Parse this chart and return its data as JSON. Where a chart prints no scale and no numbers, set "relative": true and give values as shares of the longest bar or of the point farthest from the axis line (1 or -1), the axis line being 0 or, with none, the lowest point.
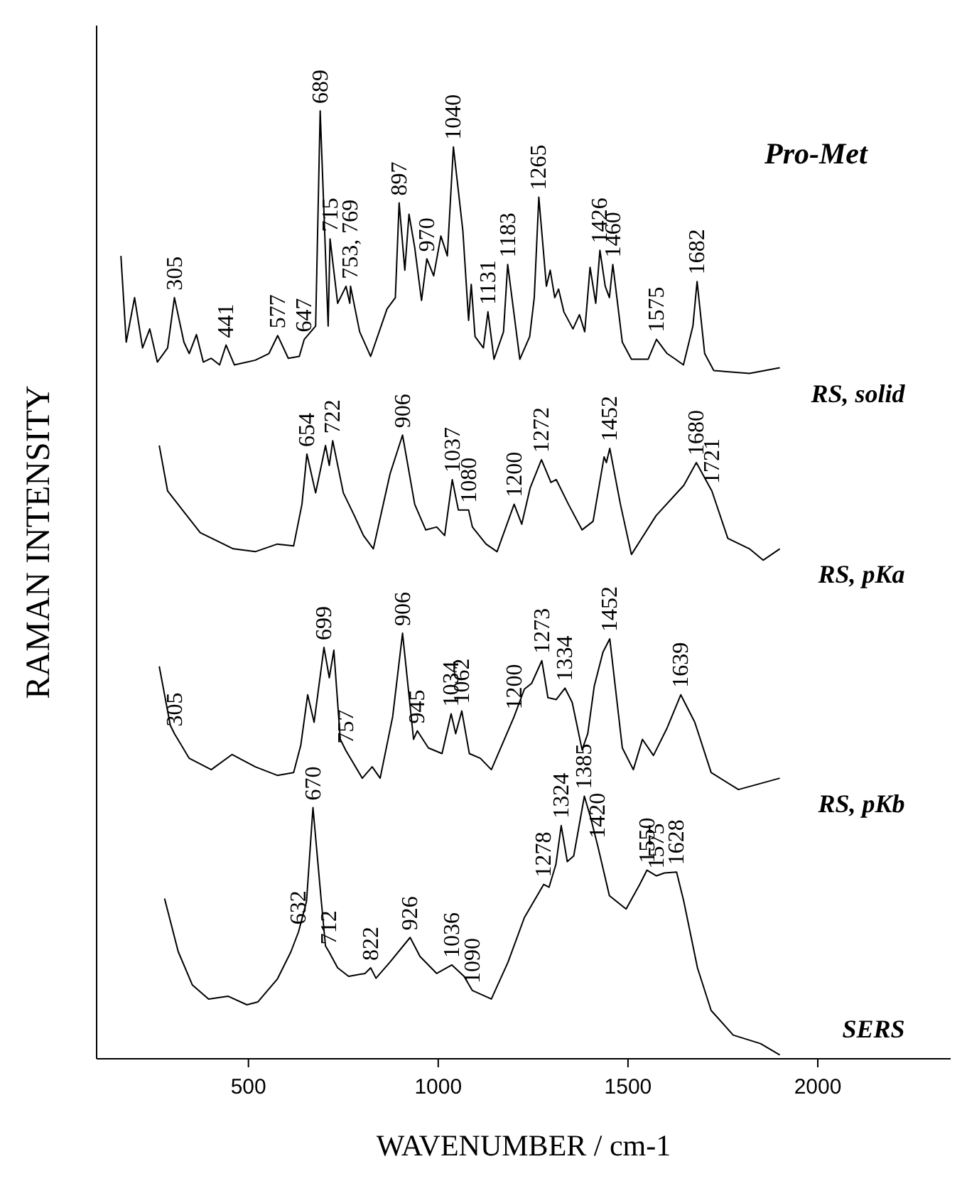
{
  "chart_data": {
    "type": "line",
    "title": "Pro-Met",
    "xlabel": "WAVENUMBER / cm-1",
    "ylabel": "RAMAN INTENSITY",
    "relative": true,
    "xlim": [
      100,
      2350
    ],
    "xticks": [
      500,
      1000,
      1500,
      2000
    ],
    "grid": false,
    "legend": false,
    "marker": "none",
    "line_style": "solid",
    "series": [
      {
        "name": "RS, solid",
        "color": "#000000",
        "x": [
          164,
          178,
          200,
          221,
          240,
          260,
          287,
          305,
          330,
          344,
          363,
          381,
          402,
          424,
          441,
          463,
          518,
          554,
          577,
          605,
          634,
          647,
          677,
          689,
          710,
          715,
          735,
          757,
          767,
          769,
          793,
          822,
          865,
          887,
          897,
          912,
          923,
          938,
          956,
          970,
          988,
          1007,
          1024,
          1040,
          1065,
          1080,
          1087,
          1097,
          1119,
          1131,
          1147,
          1172,
          1183,
          1215,
          1241,
          1253,
          1265,
          1285,
          1295,
          1307,
          1317,
          1331,
          1355,
          1372,
          1386,
          1400,
          1415,
          1426,
          1440,
          1451,
          1460,
          1485,
          1509,
          1553,
          1575,
          1603,
          1625,
          1646,
          1671,
          1682,
          1702,
          1726,
          1820,
          1900
        ],
        "values": [
          0.847,
          0.756,
          0.803,
          0.75,
          0.77,
          0.735,
          0.75,
          0.803,
          0.756,
          0.744,
          0.764,
          0.735,
          0.739,
          0.732,
          0.753,
          0.732,
          0.737,
          0.744,
          0.763,
          0.739,
          0.741,
          0.759,
          0.773,
          1.0,
          0.773,
          0.865,
          0.797,
          0.815,
          0.797,
          0.815,
          0.767,
          0.741,
          0.791,
          0.803,
          0.903,
          0.832,
          0.891,
          0.856,
          0.8,
          0.844,
          0.826,
          0.868,
          0.847,
          0.962,
          0.873,
          0.779,
          0.817,
          0.762,
          0.75,
          0.788,
          0.738,
          0.767,
          0.838,
          0.738,
          0.762,
          0.803,
          0.909,
          0.815,
          0.832,
          0.803,
          0.812,
          0.788,
          0.77,
          0.785,
          0.767,
          0.835,
          0.797,
          0.853,
          0.815,
          0.803,
          0.838,
          0.756,
          0.738,
          0.738,
          0.759,
          0.744,
          0.738,
          0.732,
          0.773,
          0.82,
          0.744,
          0.726,
          0.723,
          0.729
        ]
      },
      {
        "name": "RS, pKa",
        "color": "#000000",
        "x": [
          265,
          287,
          373,
          460,
          518,
          576,
          619,
          641,
          654,
          677,
          703,
          713,
          722,
          750,
          779,
          803,
          829,
          873,
          906,
          938,
          967,
          996,
          1017,
          1037,
          1053,
          1080,
          1090,
          1126,
          1155,
          1200,
          1220,
          1242,
          1272,
          1297,
          1311,
          1343,
          1379,
          1408,
          1437,
          1443,
          1452,
          1480,
          1509,
          1574,
          1647,
          1680,
          1721,
          1763,
          1820,
          1856,
          1900
        ],
        "values": [
          0.647,
          0.599,
          0.555,
          0.538,
          0.535,
          0.543,
          0.541,
          0.585,
          0.638,
          0.597,
          0.647,
          0.626,
          0.652,
          0.597,
          0.573,
          0.552,
          0.538,
          0.617,
          0.658,
          0.585,
          0.558,
          0.561,
          0.552,
          0.611,
          0.579,
          0.579,
          0.561,
          0.543,
          0.535,
          0.585,
          0.564,
          0.602,
          0.632,
          0.608,
          0.611,
          0.585,
          0.558,
          0.567,
          0.635,
          0.629,
          0.644,
          0.585,
          0.532,
          0.573,
          0.605,
          0.629,
          0.599,
          0.549,
          0.538,
          0.526,
          0.538
        ]
      },
      {
        "name": "RS, pKb",
        "color": "#000000",
        "x": [
          265,
          294,
          305,
          344,
          402,
          457,
          518,
          576,
          619,
          638,
          656,
          673,
          699,
          713,
          725,
          742,
          757,
          800,
          826,
          847,
          880,
          906,
          935,
          945,
          974,
          1010,
          1034,
          1046,
          1062,
          1082,
          1111,
          1140,
          1200,
          1227,
          1246,
          1273,
          1289,
          1311,
          1334,
          1353,
          1379,
          1394,
          1411,
          1434,
          1452,
          1485,
          1514,
          1538,
          1567,
          1603,
          1639,
          1676,
          1719,
          1791,
          1900
        ],
        "values": [
          0.414,
          0.352,
          0.343,
          0.317,
          0.305,
          0.321,
          0.308,
          0.299,
          0.302,
          0.331,
          0.384,
          0.355,
          0.434,
          0.402,
          0.431,
          0.337,
          0.325,
          0.296,
          0.308,
          0.296,
          0.361,
          0.449,
          0.337,
          0.346,
          0.328,
          0.322,
          0.364,
          0.343,
          0.367,
          0.322,
          0.317,
          0.305,
          0.361,
          0.39,
          0.396,
          0.42,
          0.381,
          0.379,
          0.391,
          0.376,
          0.326,
          0.343,
          0.393,
          0.429,
          0.443,
          0.328,
          0.305,
          0.337,
          0.32,
          0.349,
          0.384,
          0.355,
          0.302,
          0.284,
          0.296
        ]
      },
      {
        "name": "SERS",
        "color": "#000000",
        "x": [
          279,
          315,
          352,
          395,
          446,
          496,
          525,
          576,
          612,
          632,
          653,
          670,
          692,
          703,
          712,
          735,
          764,
          807,
          822,
          836,
          873,
          926,
          952,
          996,
          1036,
          1068,
          1090,
          1140,
          1184,
          1227,
          1278,
          1292,
          1310,
          1324,
          1340,
          1357,
          1385,
          1401,
          1420,
          1451,
          1495,
          1531,
          1550,
          1575,
          1596,
          1628,
          1647,
          1683,
          1719,
          1777,
          1849,
          1900
        ],
        "values": [
          0.169,
          0.113,
          0.078,
          0.063,
          0.066,
          0.057,
          0.06,
          0.084,
          0.113,
          0.134,
          0.166,
          0.265,
          0.166,
          0.119,
          0.113,
          0.096,
          0.087,
          0.09,
          0.096,
          0.085,
          0.102,
          0.128,
          0.108,
          0.09,
          0.099,
          0.087,
          0.072,
          0.063,
          0.102,
          0.149,
          0.184,
          0.181,
          0.205,
          0.246,
          0.208,
          0.214,
          0.277,
          0.255,
          0.225,
          0.172,
          0.158,
          0.184,
          0.199,
          0.193,
          0.196,
          0.197,
          0.166,
          0.096,
          0.051,
          0.025,
          0.016,
          0.004
        ]
      }
    ],
    "annotations": [
      {
        "text": "305",
        "x": 305,
        "y": 0.803
      },
      {
        "text": "441",
        "x": 441,
        "y": 0.753
      },
      {
        "text": "577",
        "x": 577,
        "y": 0.763
      },
      {
        "text": "647",
        "x": 647,
        "y": 0.759
      },
      {
        "text": "689",
        "x": 689,
        "y": 1.0
      },
      {
        "text": "715",
        "x": 715,
        "y": 0.865
      },
      {
        "text": "753, 769",
        "x": 769,
        "y": 0.815
      },
      {
        "text": "897",
        "x": 897,
        "y": 0.903
      },
      {
        "text": "970",
        "x": 970,
        "y": 0.844
      },
      {
        "text": "1040",
        "x": 1040,
        "y": 0.962
      },
      {
        "text": "1131",
        "x": 1131,
        "y": 0.788
      },
      {
        "text": "1183",
        "x": 1183,
        "y": 0.838
      },
      {
        "text": "1265",
        "x": 1265,
        "y": 0.909
      },
      {
        "text": "1426",
        "x": 1426,
        "y": 0.853
      },
      {
        "text": "1460",
        "x": 1460,
        "y": 0.838
      },
      {
        "text": "1575",
        "x": 1575,
        "y": 0.759
      },
      {
        "text": "1682",
        "x": 1682,
        "y": 0.82
      },
      {
        "text": "654",
        "x": 654,
        "y": 0.638
      },
      {
        "text": "722",
        "x": 722,
        "y": 0.652
      },
      {
        "text": "906",
        "x": 906,
        "y": 0.658
      },
      {
        "text": "1037",
        "x": 1037,
        "y": 0.611
      },
      {
        "text": "1080",
        "x": 1080,
        "y": 0.579
      },
      {
        "text": "1200",
        "x": 1200,
        "y": 0.585
      },
      {
        "text": "1272",
        "x": 1272,
        "y": 0.632
      },
      {
        "text": "1452",
        "x": 1452,
        "y": 0.644
      },
      {
        "text": "1680",
        "x": 1680,
        "y": 0.629
      },
      {
        "text": "1721",
        "x": 1721,
        "y": 0.599
      },
      {
        "text": "305",
        "x": 305,
        "y": 0.343
      },
      {
        "text": "699",
        "x": 699,
        "y": 0.434
      },
      {
        "text": "757",
        "x": 757,
        "y": 0.325
      },
      {
        "text": "906",
        "x": 906,
        "y": 0.449
      },
      {
        "text": "945",
        "x": 945,
        "y": 0.346
      },
      {
        "text": "1034",
        "x": 1034,
        "y": 0.364
      },
      {
        "text": "1062",
        "x": 1062,
        "y": 0.367
      },
      {
        "text": "1200",
        "x": 1200,
        "y": 0.361
      },
      {
        "text": "1273",
        "x": 1273,
        "y": 0.42
      },
      {
        "text": "1334",
        "x": 1334,
        "y": 0.391
      },
      {
        "text": "1452",
        "x": 1452,
        "y": 0.443
      },
      {
        "text": "1639",
        "x": 1639,
        "y": 0.384
      },
      {
        "text": "632",
        "x": 632,
        "y": 0.134
      },
      {
        "text": "670",
        "x": 670,
        "y": 0.265
      },
      {
        "text": "712",
        "x": 712,
        "y": 0.113
      },
      {
        "text": "822",
        "x": 822,
        "y": 0.096
      },
      {
        "text": "926",
        "x": 926,
        "y": 0.128
      },
      {
        "text": "1036",
        "x": 1036,
        "y": 0.099
      },
      {
        "text": "1090",
        "x": 1090,
        "y": 0.072
      },
      {
        "text": "1278",
        "x": 1278,
        "y": 0.184
      },
      {
        "text": "1324",
        "x": 1324,
        "y": 0.246
      },
      {
        "text": "1385",
        "x": 1385,
        "y": 0.277
      },
      {
        "text": "1420",
        "x": 1420,
        "y": 0.225
      },
      {
        "text": "1550",
        "x": 1550,
        "y": 0.199
      },
      {
        "text": "1575",
        "x": 1575,
        "y": 0.193
      },
      {
        "text": "1628",
        "x": 1628,
        "y": 0.197
      }
    ]
  }
}
